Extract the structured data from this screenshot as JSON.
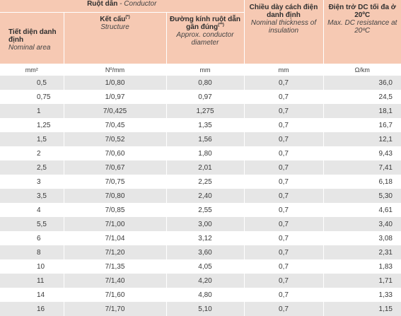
{
  "header": {
    "conductor_vn": "Ruột dẫn",
    "conductor_sep": " - ",
    "conductor_en": "Conductor",
    "size_vn": "Tiết diện danh định",
    "size_en": "Nominal area",
    "struct_vn": "Kết cấu",
    "struct_sup": "(*)",
    "struct_en": "Structure",
    "diam_vn": "Đường kính ruột dẫn gần đúng",
    "diam_sup": "(**)",
    "diam_en": "Approx. conductor diameter",
    "ins_vn": "Chiều dày cách điện danh định",
    "ins_en": "Nominal thickness of insulation",
    "res_vn": "Điện trở DC tối đa ở 20ºC",
    "res_en": "Max. DC resistance at 20ºC"
  },
  "units": [
    "mm²",
    "Nº/mm",
    "mm",
    "mm",
    "Ω/km"
  ],
  "rows": [
    [
      "0,5",
      "1/0,80",
      "0,80",
      "0,7",
      "36,0"
    ],
    [
      "0,75",
      "1/0,97",
      "0,97",
      "0,7",
      "24,5"
    ],
    [
      "1",
      "7/0,425",
      "1,275",
      "0,7",
      "18,1"
    ],
    [
      "1,25",
      "7/0,45",
      "1,35",
      "0,7",
      "16,7"
    ],
    [
      "1,5",
      "7/0,52",
      "1,56",
      "0,7",
      "12,1"
    ],
    [
      "2",
      "7/0,60",
      "1,80",
      "0,7",
      "9,43"
    ],
    [
      "2,5",
      "7/0,67",
      "2,01",
      "0,7",
      "7,41"
    ],
    [
      "3",
      "7/0,75",
      "2,25",
      "0,7",
      "6,18"
    ],
    [
      "3,5",
      "7/0,80",
      "2,40",
      "0,7",
      "5,30"
    ],
    [
      "4",
      "7/0,85",
      "2,55",
      "0,7",
      "4,61"
    ],
    [
      "5,5",
      "7/1,00",
      "3,00",
      "0,7",
      "3,40"
    ],
    [
      "6",
      "7/1,04",
      "3,12",
      "0,7",
      "3,08"
    ],
    [
      "8",
      "7/1,20",
      "3,60",
      "0,7",
      "2,31"
    ],
    [
      "10",
      "7/1,35",
      "4,05",
      "0,7",
      "1,83"
    ],
    [
      "11",
      "7/1,40",
      "4,20",
      "0,7",
      "1,71"
    ],
    [
      "14",
      "7/1,60",
      "4,80",
      "0,7",
      "1,33"
    ],
    [
      "16",
      "7/1,70",
      "5,10",
      "0,7",
      "1,15"
    ]
  ],
  "colors": {
    "header_bg": "#f6c9b3",
    "stripe": "#e6e6e6",
    "text": "#3a3a3a"
  }
}
